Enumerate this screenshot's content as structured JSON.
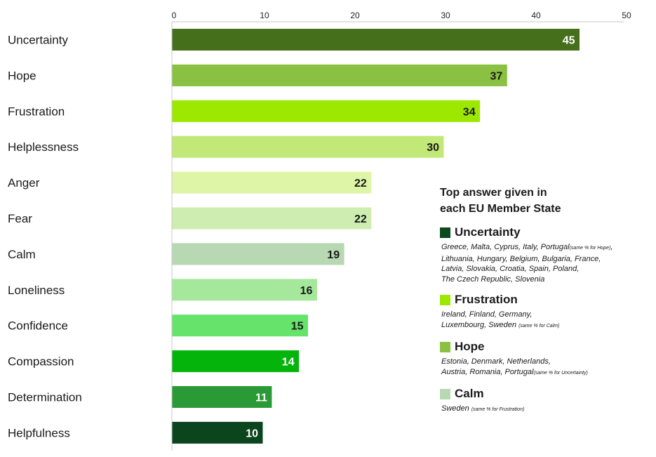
{
  "chart_data": {
    "type": "bar",
    "orientation": "horizontal",
    "xlim": [
      0,
      50
    ],
    "ticks": [
      0,
      10,
      20,
      30,
      40,
      50
    ],
    "categories": [
      "Uncertainty",
      "Hope",
      "Frustration",
      "Helplessness",
      "Anger",
      "Fear",
      "Calm",
      "Loneliness",
      "Confidence",
      "Compassion",
      "Determination",
      "Helpfulness"
    ],
    "values": [
      45,
      37,
      34,
      30,
      22,
      22,
      19,
      16,
      15,
      14,
      11,
      10
    ],
    "bar_colors": [
      "#466f1c",
      "#8bc142",
      "#9de800",
      "#c2e978",
      "#def5a7",
      "#cdeeb0",
      "#b7d8b3",
      "#a6e89b",
      "#65e36a",
      "#04b40b",
      "#2a9a36",
      "#0b451d"
    ],
    "label_colors": [
      "#ffffff",
      "#1a1a1a",
      "#1a1a1a",
      "#1a1a1a",
      "#1a1a1a",
      "#1a1a1a",
      "#1a1a1a",
      "#1a1a1a",
      "#1a1a1a",
      "#ffffff",
      "#ffffff",
      "#ffffff"
    ],
    "grid": false
  },
  "legend": {
    "title_line1": "Top answer given in",
    "title_line2": "each EU Member State",
    "items": [
      {
        "name": "Uncertainty",
        "color": "#0b4a1f",
        "line1": "Greece, Malta, Cyprus, Italy, Portugal",
        "line1_note": "(same % for Hope)",
        "line1_tail": ",",
        "line2": "Lithuania, Hungary, Belgium, Bulgaria, France,",
        "line3": "Latvia, Slovakia, Croatia, Spain, Poland,",
        "line4": "The Czech Republic, Slovenia"
      },
      {
        "name": "Frustration",
        "color": "#9de800",
        "line1": "Ireland, Finland, Germany,",
        "line2": "Luxembourg, Sweden",
        "line2_note": "(same % for Calm)"
      },
      {
        "name": "Hope",
        "color": "#8bc142",
        "line1": "Estonia, Denmark, Netherlands,",
        "line2": "Austria, Romania, Portugal",
        "line2_note": "(same % for Uncertainty)"
      },
      {
        "name": "Calm",
        "color": "#b7d8b3",
        "line1": "Sweden",
        "line1_note": "(same % for Frustration)"
      }
    ]
  }
}
